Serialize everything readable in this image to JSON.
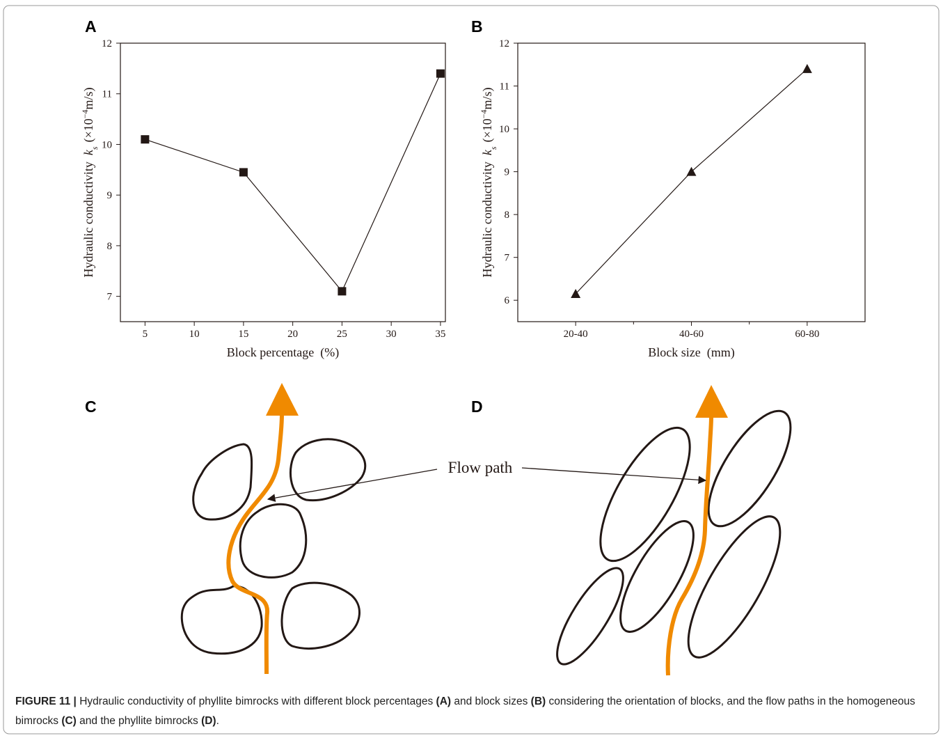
{
  "panel_labels": [
    "A",
    "B",
    "C",
    "D"
  ],
  "chart_data": [
    {
      "type": "line",
      "xlabel": "Block percentage  (%)",
      "ylabel": {
        "text": "Hydraulic conductivity",
        "symbol": "k",
        "subscript": "s",
        "unit_prefix": "(×10",
        "exponent": "−4",
        "unit_suffix": "m/s)"
      },
      "x": [
        5,
        15,
        25,
        35
      ],
      "values": [
        10.1,
        9.45,
        7.1,
        11.4
      ],
      "marker": "square",
      "color": "#231815",
      "xlim": [
        2.5,
        35.5
      ],
      "xticks": [
        5,
        10,
        15,
        20,
        25,
        30,
        35
      ],
      "ylim": [
        6.5,
        12
      ],
      "yticks": [
        7,
        8,
        9,
        10,
        11,
        12
      ]
    },
    {
      "type": "line",
      "xlabel": "Block size  (mm)",
      "ylabel": {
        "text": "Hydraulic conductivity",
        "symbol": "k",
        "subscript": "s",
        "unit_prefix": "(×10",
        "exponent": "−4",
        "unit_suffix": "m/s)"
      },
      "categories": [
        "20-40",
        "40-60",
        "60-80"
      ],
      "values": [
        6.15,
        9,
        11.4
      ],
      "marker": "triangle",
      "color": "#231815",
      "ylim": [
        5.5,
        12
      ],
      "yticks": [
        6,
        7,
        8,
        9,
        10,
        11,
        12
      ]
    }
  ],
  "diagram": {
    "label": "Flow path"
  },
  "caption": [
    {
      "text": "FIGURE 11 |",
      "bold": true
    },
    {
      "text": " Hydraulic conductivity of phyllite bimrocks with different block percentages ",
      "bold": false
    },
    {
      "text": "(A)",
      "bold": true
    },
    {
      "text": " and block sizes ",
      "bold": false
    },
    {
      "text": "(B)",
      "bold": true
    },
    {
      "text": " considering the orientation of blocks, and the flow paths in the homogeneous bimrocks ",
      "bold": false
    },
    {
      "text": "(C)",
      "bold": true
    },
    {
      "text": " and the phyllite bimrocks ",
      "bold": false
    },
    {
      "text": "(D)",
      "bold": true
    },
    {
      "text": ".",
      "bold": false
    }
  ]
}
